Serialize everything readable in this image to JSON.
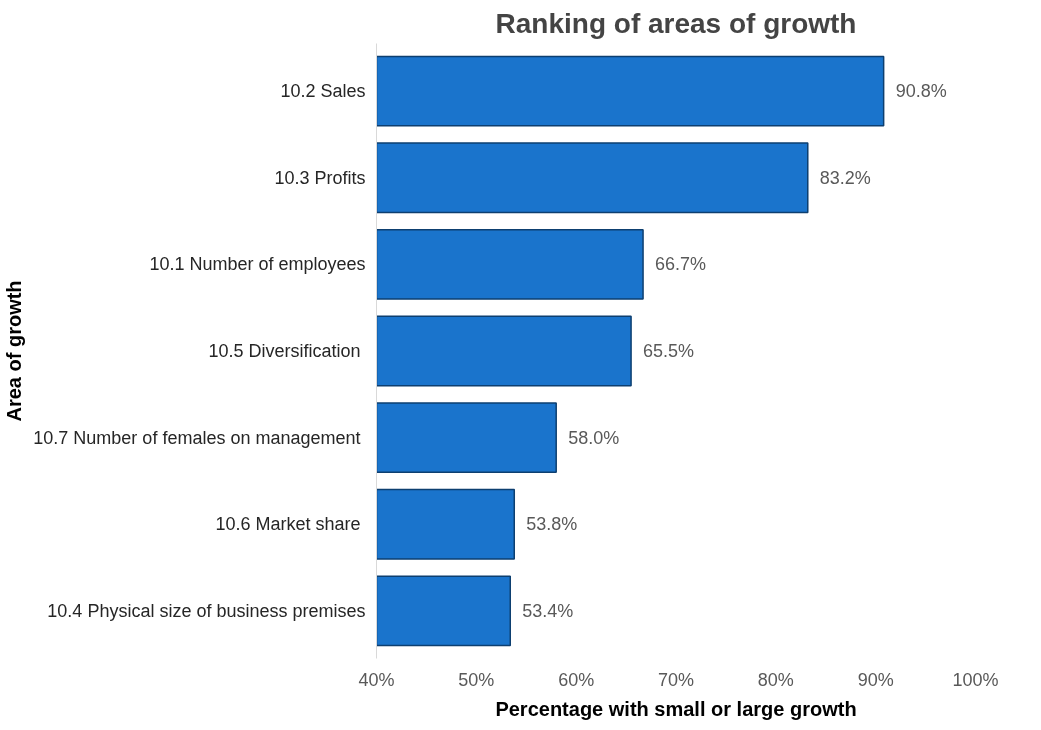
{
  "chart_data": {
    "type": "bar",
    "orientation": "horizontal",
    "title": "Ranking of areas of growth",
    "xlabel": "Percentage with small or large growth",
    "ylabel": "Area of growth",
    "categories": [
      "10.2 Sales",
      "10.3 Profits",
      "10.1 Number of employees",
      "10.5  Diversification",
      "10.7  Number of females on management",
      "10.6  Market share",
      "10.4 Physical size of business premises"
    ],
    "values": [
      90.8,
      83.2,
      66.7,
      65.5,
      58.0,
      53.8,
      53.4
    ],
    "value_labels": [
      "90.8%",
      "83.2%",
      "66.7%",
      "65.5%",
      "58.0%",
      "53.8%",
      "53.4%"
    ],
    "color": "#1a74cc",
    "xlim": [
      40,
      100
    ],
    "xticks": [
      {
        "value": 40,
        "label": "40%"
      },
      {
        "value": 50,
        "label": "50%"
      },
      {
        "value": 60,
        "label": "60%"
      },
      {
        "value": 70,
        "label": "70%"
      },
      {
        "value": 80,
        "label": "80%"
      },
      {
        "value": 90,
        "label": "90%"
      },
      {
        "value": 100,
        "label": "100%"
      }
    ],
    "grid": false
  }
}
